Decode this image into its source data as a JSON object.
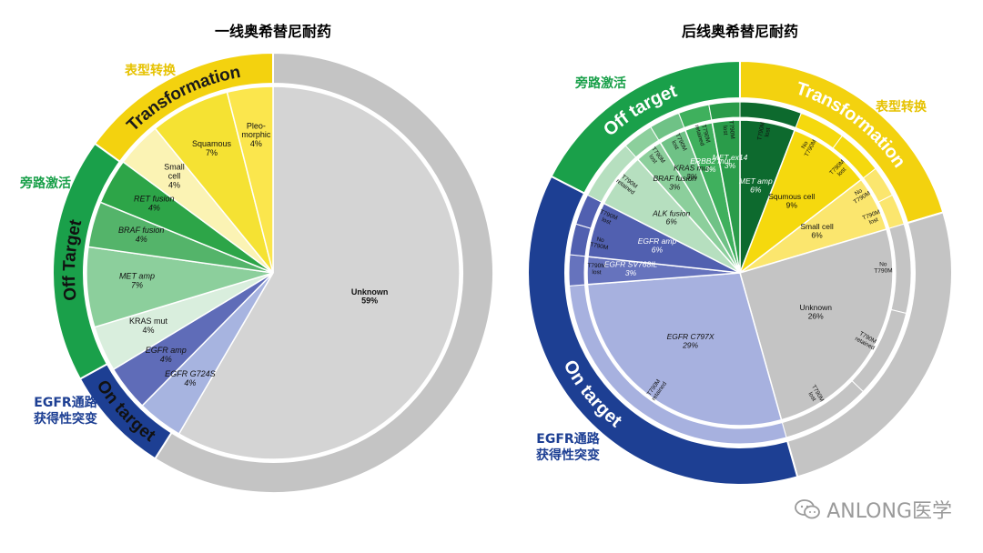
{
  "chart_data": [
    {
      "type": "pie",
      "title": "一线奥希替尼耐药",
      "inner_slices": [
        {
          "label": "Unknown",
          "value": 59,
          "value_text": "59%",
          "color": "#d4d4d4"
        },
        {
          "label": "EGFR G724S",
          "value": 4,
          "value_text": "4%",
          "color": "#a7b4e0"
        },
        {
          "label": "EGFR amp",
          "value": 4,
          "value_text": "4%",
          "color": "#5f6cb8"
        },
        {
          "label": "KRAS mut",
          "value": 4,
          "value_text": "4%",
          "color": "#d9eedd"
        },
        {
          "label": "MET amp",
          "value": 7,
          "value_text": "7%",
          "color": "#8ccf9c"
        },
        {
          "label": "BRAF fusion",
          "value": 4,
          "value_text": "4%",
          "color": "#54b46a"
        },
        {
          "label": "RET fusion",
          "value": 4,
          "value_text": "4%",
          "color": "#2da548"
        },
        {
          "label": "Small cell",
          "value": 4,
          "value_text": "4%",
          "color": "#fbf3b4"
        },
        {
          "label": "Squamous",
          "value": 7,
          "value_text": "7%",
          "color": "#f5e233"
        },
        {
          "label": "Pleo-morphic",
          "value": 4,
          "value_text": "4%",
          "color": "#fbe64d"
        }
      ],
      "outer_ring": [
        {
          "label": "Unknown",
          "value": 59,
          "color": "#c4c4c4"
        },
        {
          "label": "On target",
          "value": 8,
          "color": "#1d3f93"
        },
        {
          "label": "Off Target",
          "value": 18,
          "color": "#1aa04a"
        },
        {
          "label": "Transformation",
          "value": 15,
          "color": "#f3d20f"
        }
      ],
      "group_labels": [
        {
          "text": "表型转换",
          "color": "#e6c200"
        },
        {
          "text": "旁路激活",
          "color": "#1aa04a"
        },
        {
          "text": "EGFR通路\n获得性突变",
          "color": "#1d3f93"
        }
      ]
    },
    {
      "type": "pie",
      "title": "后线奥希替尼耐药",
      "inner_slices": [
        {
          "label": "MET amp",
          "value": 6,
          "value_text": "6%",
          "color": "#0d6a2e"
        },
        {
          "label": "Squmous cell",
          "value": 9,
          "value_text": "9%",
          "color": "#f5d90e"
        },
        {
          "label": "Small cell",
          "value": 6,
          "value_text": "6%",
          "color": "#fbe66e"
        },
        {
          "label": "Unknown",
          "value": 26,
          "value_text": "26%",
          "color": "#c4c4c4"
        },
        {
          "label": "EGFR C797X",
          "value": 29,
          "value_text": "29%",
          "color": "#a7b1df"
        },
        {
          "label": "EGFR SV768IL",
          "value": 3,
          "value_text": "3%",
          "color": "#6673bd"
        },
        {
          "label": "EGFR amp",
          "value": 6,
          "value_text": "6%",
          "color": "#5160b0"
        },
        {
          "label": "ALK fusion",
          "value": 6,
          "value_text": "6%",
          "color": "#b6dfbf"
        },
        {
          "label": "BRAF fusion",
          "value": 3,
          "value_text": "3%",
          "color": "#8ccf9c"
        },
        {
          "label": "KRAS mut",
          "value": 3,
          "value_text": "3%",
          "color": "#6fc286"
        },
        {
          "label": "ERBB2 mut",
          "value": 3,
          "value_text": "3%",
          "color": "#3fb05d"
        },
        {
          "label": "MET ex14",
          "value": 3,
          "value_text": "3%",
          "color": "#2a9c4a"
        }
      ],
      "middle_ring": [
        {
          "label": "T790M lost",
          "color": "#0d6a2e"
        },
        {
          "label": "No T790M",
          "color": "#f5d90e"
        },
        {
          "label": "T790M lost",
          "color": "#f5d90e"
        },
        {
          "label": "No T790M",
          "color": "#fbe66e"
        },
        {
          "label": "T790M lost",
          "color": "#fbe66e"
        },
        {
          "label": "No T790M",
          "color": "#c4c4c4"
        },
        {
          "label": "T790M retained",
          "color": "#c4c4c4"
        },
        {
          "label": "T790M lost",
          "color": "#c4c4c4"
        },
        {
          "label": "T790M retained",
          "color": "#a7b1df"
        },
        {
          "label": "T790M lost",
          "color": "#6673bd"
        },
        {
          "label": "No T790M",
          "color": "#5160b0"
        },
        {
          "label": "T790M lost",
          "color": "#5160b0"
        },
        {
          "label": "T790M retained",
          "color": "#b6dfbf"
        },
        {
          "label": "T790M lost",
          "color": "#8ccf9c"
        },
        {
          "label": "T790M lost",
          "color": "#6fc286"
        },
        {
          "label": "T790M retained",
          "color": "#3fb05d"
        },
        {
          "label": "T790M lost",
          "color": "#2a9c4a"
        }
      ],
      "outer_ring": [
        {
          "label": "Off target",
          "color": "#1aa04a"
        },
        {
          "label": "Transformation",
          "color": "#f3d20f"
        },
        {
          "label": "Unknown",
          "color": "#c4c4c4"
        },
        {
          "label": "On target",
          "color": "#1d3f93"
        }
      ],
      "group_labels": [
        {
          "text": "旁路激活",
          "color": "#1aa04a"
        },
        {
          "text": "表型转换",
          "color": "#e6c200"
        },
        {
          "text": "EGFR通路\n获得性突变",
          "color": "#1d3f93"
        }
      ]
    }
  ],
  "watermark": "ANLONG医学"
}
